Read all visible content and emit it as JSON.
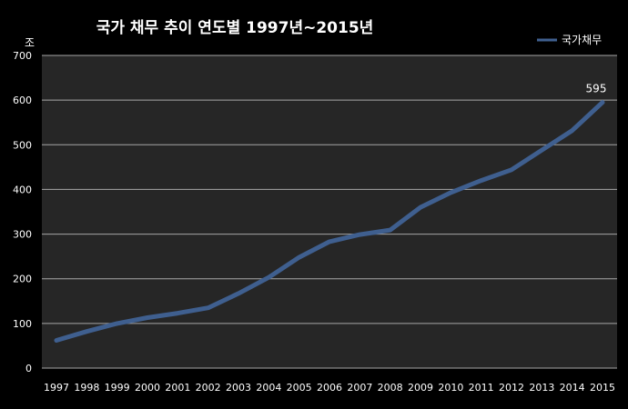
{
  "chart_data": {
    "type": "line",
    "title": "국가 채무 추이 연도별 1997년~2015년",
    "unit_label": "조",
    "categories": [
      "1997",
      "1998",
      "1999",
      "2000",
      "2001",
      "2002",
      "2003",
      "2004",
      "2005",
      "2006",
      "2007",
      "2008",
      "2009",
      "2010",
      "2011",
      "2012",
      "2013",
      "2014",
      "2015"
    ],
    "series": [
      {
        "name": "국가채무",
        "color": "#3f5f8f",
        "values": [
          62,
          82,
          100,
          113,
          123,
          135,
          167,
          203,
          248,
          283,
          299,
          309,
          360,
          393,
          420,
          444,
          488,
          532,
          595
        ]
      }
    ],
    "data_labels": [
      {
        "category": "2015",
        "text": "595"
      }
    ],
    "yticks": [
      "0",
      "100",
      "200",
      "300",
      "400",
      "500",
      "600",
      "700"
    ],
    "ylim": [
      0,
      700
    ],
    "grid": true,
    "legend": "top-right",
    "plot_background": "#262626",
    "page_background": "#000000",
    "gridline_color": "#a6a6a6"
  }
}
